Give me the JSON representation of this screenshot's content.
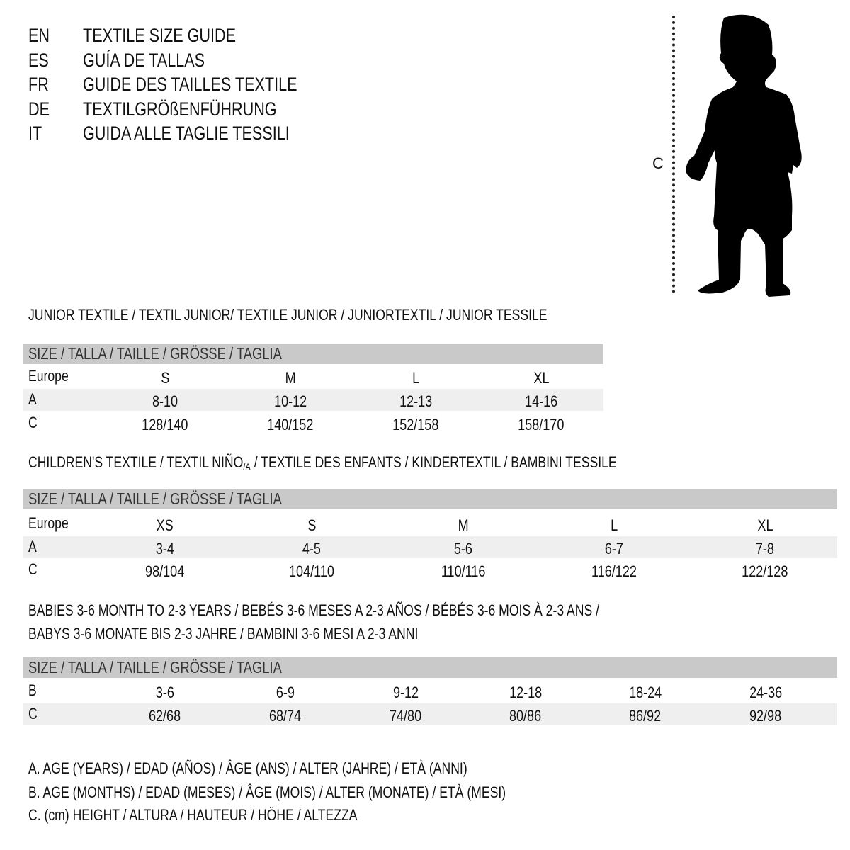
{
  "languages": [
    {
      "code": "EN",
      "title": "TEXTILE SIZE GUIDE"
    },
    {
      "code": "ES",
      "title": "GUÍA DE TALLAS"
    },
    {
      "code": "FR",
      "title": "GUIDE DES TAILLES TEXTILE"
    },
    {
      "code": "DE",
      "title": "TEXTILGRÖßENFÜHRUNG"
    },
    {
      "code": "IT",
      "title": "GUIDA ALLE TAGLIE TESSILI"
    }
  ],
  "figure": {
    "measure_label": "C",
    "icon": "child-silhouette"
  },
  "size_header": "SIZE / TALLA / TAILLE / GRÖSSE / TAGLIA",
  "junior": {
    "title": "JUNIOR TEXTILE / TEXTIL JUNIOR/ TEXTILE JUNIOR / JUNIORTEXTIL / JUNIOR TESSILE",
    "rows": [
      {
        "label": "Europe",
        "values": [
          "S",
          "M",
          "L",
          "XL"
        ]
      },
      {
        "label": "A",
        "values": [
          "8-10",
          "10-12",
          "12-13",
          "14-16"
        ]
      },
      {
        "label": "C",
        "values": [
          "128/140",
          "140/152",
          "152/158",
          "158/170"
        ]
      }
    ]
  },
  "children": {
    "title_a": "CHILDREN'S TEXTILE / TEXTIL NIÑO",
    "title_sub": "/A",
    "title_b": " / TEXTILE DES ENFANTS / KINDERTEXTIL / BAMBINI TESSILE",
    "rows": [
      {
        "label": "Europe",
        "values": [
          "XS",
          "S",
          "M",
          "L",
          "XL"
        ]
      },
      {
        "label": "A",
        "values": [
          "3-4",
          "4-5",
          "5-6",
          "6-7",
          "7-8"
        ]
      },
      {
        "label": "C",
        "values": [
          "98/104",
          "104/110",
          "110/116",
          "116/122",
          "122/128"
        ]
      }
    ]
  },
  "babies": {
    "title_line1": "BABIES 3-6 MONTH TO 2-3 YEARS / BEBÉS 3-6 MESES A 2-3 AÑOS / BÉBÉS 3-6 MOIS À 2-3 ANS /",
    "title_line2": "BABYS 3-6 MONATE BIS 2-3 JAHRE / BAMBINI 3-6 MESI A 2-3 ANNI",
    "rows": [
      {
        "label": "B",
        "values": [
          "3-6",
          "6-9",
          "9-12",
          "12-18",
          "18-24",
          "24-36"
        ]
      },
      {
        "label": "C",
        "values": [
          "62/68",
          "68/74",
          "74/80",
          "80/86",
          "86/92",
          "92/98"
        ]
      }
    ]
  },
  "legend": [
    "A. AGE (YEARS) / EDAD (AÑOS) / ÂGE (ANS) / ALTER (JAHRE) / ETÀ (ANNI)",
    "B. AGE (MONTHS) / EDAD (MESES) / ÂGE (MOIS) / ALTER (MONATE) / ETÀ (MESI)",
    "C. (cm) HEIGHT / ALTURA / HAUTEUR / HÖHE / ALTEZZA"
  ],
  "colors": {
    "band": "#c9c9c9",
    "stripe": "#efefef",
    "text": "#111111"
  }
}
